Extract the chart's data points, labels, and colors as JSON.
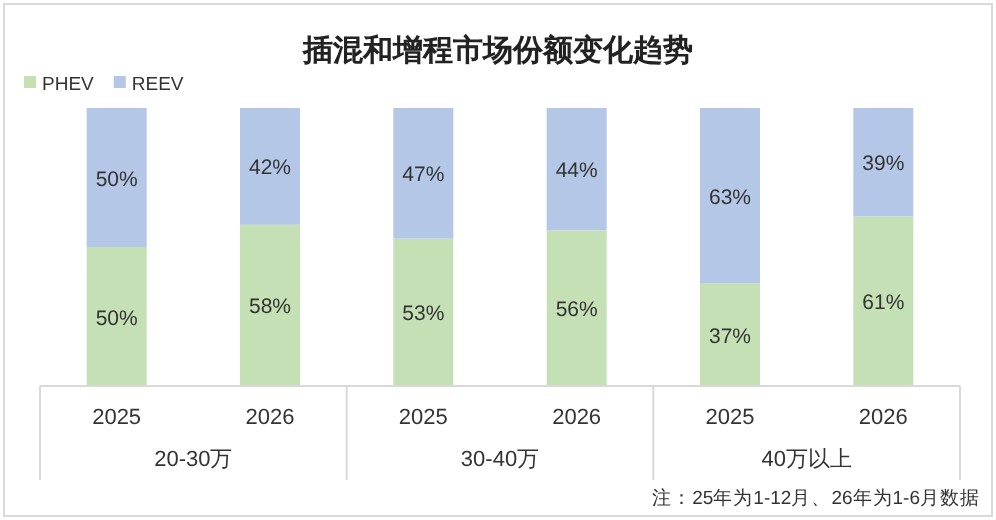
{
  "chart_data": {
    "type": "bar",
    "title": "插混和增程市场份额变化趋势",
    "stacked": true,
    "legend": "top left",
    "categories": [
      "2025",
      "2026",
      "2025",
      "2026",
      "2025",
      "2026"
    ],
    "series": [
      {
        "name": "PHEV",
        "color": "#c5e0b4",
        "values": [
          50,
          58,
          53,
          56,
          37,
          61
        ],
        "value_labels": [
          "50%",
          "58%",
          "53%",
          "56%",
          "37%",
          "61%"
        ]
      },
      {
        "name": "REEV",
        "color": "#b4c7e7",
        "values": [
          50,
          42,
          47,
          44,
          63,
          39
        ],
        "value_labels": [
          "50%",
          "42%",
          "47%",
          "44%",
          "63%",
          "39%"
        ]
      }
    ],
    "annotations": [
      "20-30万",
      "30-40万",
      "40万以上",
      "注：25年为1-12月、26年为1-6月数据"
    ]
  }
}
